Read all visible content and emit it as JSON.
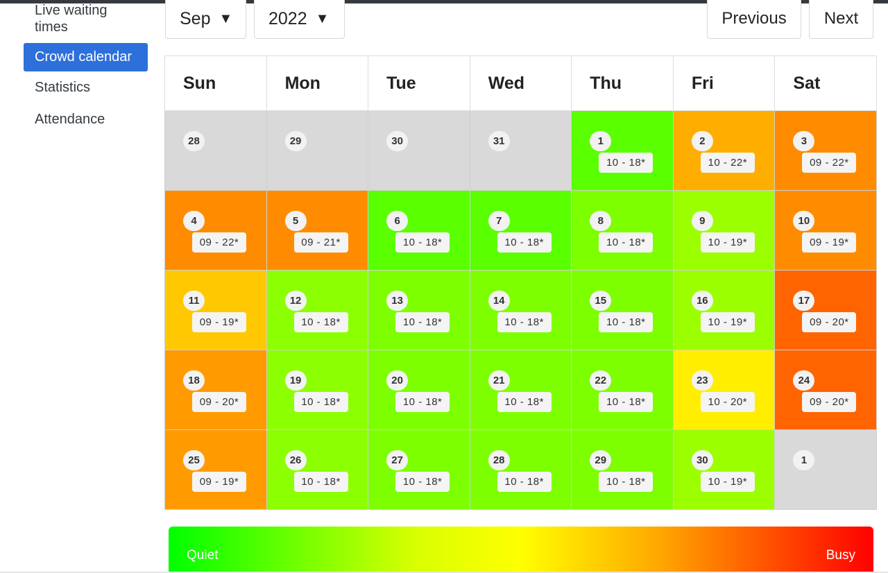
{
  "sidebar": {
    "items": [
      {
        "label": "Live waiting times",
        "active": false
      },
      {
        "label": "Crowd calendar",
        "active": true
      },
      {
        "label": "Statistics",
        "active": false
      },
      {
        "label": "Attendance",
        "active": false
      }
    ]
  },
  "controls": {
    "month": "Sep",
    "year": "2022",
    "dropdown_arrow": "▼",
    "previous_label": "Previous",
    "next_label": "Next"
  },
  "calendar": {
    "weekdays": [
      "Sun",
      "Mon",
      "Tue",
      "Wed",
      "Thu",
      "Fri",
      "Sat"
    ],
    "weeks": [
      [
        {
          "day": "28",
          "hours": "",
          "color": "#d9d9d9"
        },
        {
          "day": "29",
          "hours": "",
          "color": "#d9d9d9"
        },
        {
          "day": "30",
          "hours": "",
          "color": "#d9d9d9"
        },
        {
          "day": "31",
          "hours": "",
          "color": "#d9d9d9"
        },
        {
          "day": "1",
          "hours": "10 - 18*",
          "color": "#5aff00"
        },
        {
          "day": "2",
          "hours": "10 - 22*",
          "color": "#ffae00"
        },
        {
          "day": "3",
          "hours": "09 - 22*",
          "color": "#ff8c00"
        }
      ],
      [
        {
          "day": "4",
          "hours": "09 - 22*",
          "color": "#ff8c00"
        },
        {
          "day": "5",
          "hours": "09 - 21*",
          "color": "#ff8c00"
        },
        {
          "day": "6",
          "hours": "10 - 18*",
          "color": "#5aff00"
        },
        {
          "day": "7",
          "hours": "10 - 18*",
          "color": "#5aff00"
        },
        {
          "day": "8",
          "hours": "10 - 18*",
          "color": "#7dff00"
        },
        {
          "day": "9",
          "hours": "10 - 19*",
          "color": "#9cff00"
        },
        {
          "day": "10",
          "hours": "09 - 19*",
          "color": "#ff8c00"
        }
      ],
      [
        {
          "day": "11",
          "hours": "09 - 19*",
          "color": "#ffc800"
        },
        {
          "day": "12",
          "hours": "10 - 18*",
          "color": "#8cff00"
        },
        {
          "day": "13",
          "hours": "10 - 18*",
          "color": "#7dff00"
        },
        {
          "day": "14",
          "hours": "10 - 18*",
          "color": "#7dff00"
        },
        {
          "day": "15",
          "hours": "10 - 18*",
          "color": "#7dff00"
        },
        {
          "day": "16",
          "hours": "10 - 19*",
          "color": "#9cff00"
        },
        {
          "day": "17",
          "hours": "09 - 20*",
          "color": "#ff6400"
        }
      ],
      [
        {
          "day": "18",
          "hours": "09 - 20*",
          "color": "#ff9b00"
        },
        {
          "day": "19",
          "hours": "10 - 18*",
          "color": "#8cff00"
        },
        {
          "day": "20",
          "hours": "10 - 18*",
          "color": "#7dff00"
        },
        {
          "day": "21",
          "hours": "10 - 18*",
          "color": "#7dff00"
        },
        {
          "day": "22",
          "hours": "10 - 18*",
          "color": "#7dff00"
        },
        {
          "day": "23",
          "hours": "10 - 20*",
          "color": "#ffee00"
        },
        {
          "day": "24",
          "hours": "09 - 20*",
          "color": "#ff6400"
        }
      ],
      [
        {
          "day": "25",
          "hours": "09 - 19*",
          "color": "#ff9b00"
        },
        {
          "day": "26",
          "hours": "10 - 18*",
          "color": "#8cff00"
        },
        {
          "day": "27",
          "hours": "10 - 18*",
          "color": "#7dff00"
        },
        {
          "day": "28",
          "hours": "10 - 18*",
          "color": "#7dff00"
        },
        {
          "day": "29",
          "hours": "10 - 18*",
          "color": "#7dff00"
        },
        {
          "day": "30",
          "hours": "10 - 19*",
          "color": "#9cff00"
        },
        {
          "day": "1",
          "hours": "",
          "color": "#d9d9d9"
        }
      ]
    ]
  },
  "legend": {
    "quiet_label": "Quiet",
    "busy_label": "Busy"
  }
}
